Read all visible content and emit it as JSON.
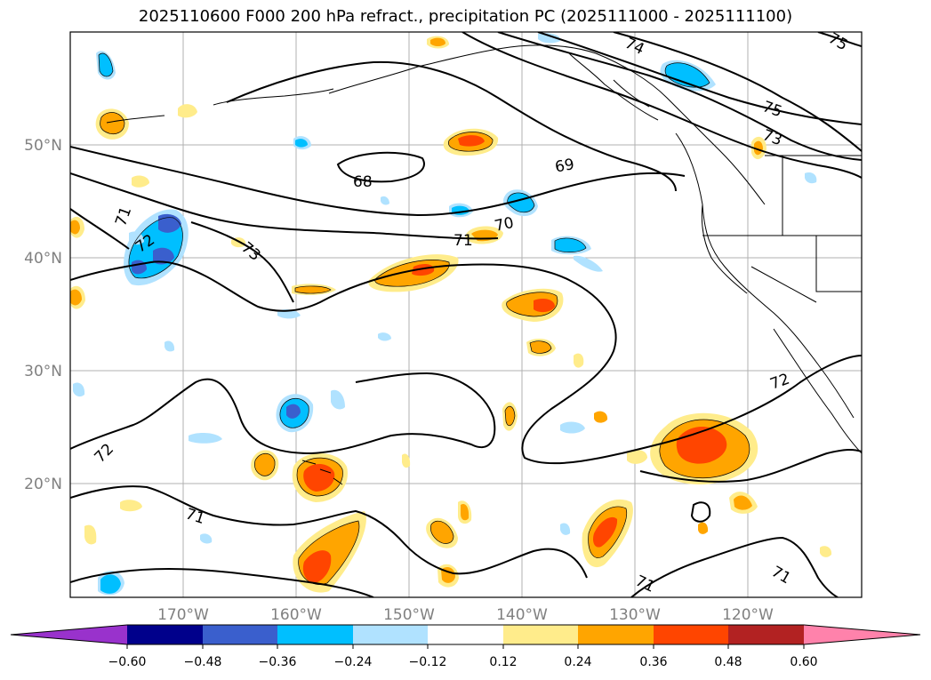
{
  "title": "2025110600 F000 200 hPa refract., precipitation PC (2025111000 - 2025111100)",
  "lat_labels": [
    "50°N",
    "40°N",
    "30°N",
    "20°N"
  ],
  "lon_labels": [
    "170°W",
    "160°W",
    "150°W",
    "140°W",
    "130°W",
    "120°W"
  ],
  "contour_labels": [
    "74",
    "75",
    "75",
    "73",
    "68",
    "69",
    "70",
    "71",
    "71",
    "72",
    "73",
    "72",
    "72",
    "71",
    "71",
    "71"
  ],
  "colorbar": {
    "ticks": [
      "−0.60",
      "−0.48",
      "−0.36",
      "−0.24",
      "−0.12",
      "0.12",
      "0.24",
      "0.36",
      "0.48",
      "0.60"
    ],
    "colors": [
      "#9932cc",
      "#00008b",
      "#3a5fcd",
      "#00bfff",
      "#b0e2ff",
      "#ffffff",
      "#ffec8b",
      "#ffa500",
      "#ff4500",
      "#b22222",
      "#ff82ab"
    ]
  }
}
